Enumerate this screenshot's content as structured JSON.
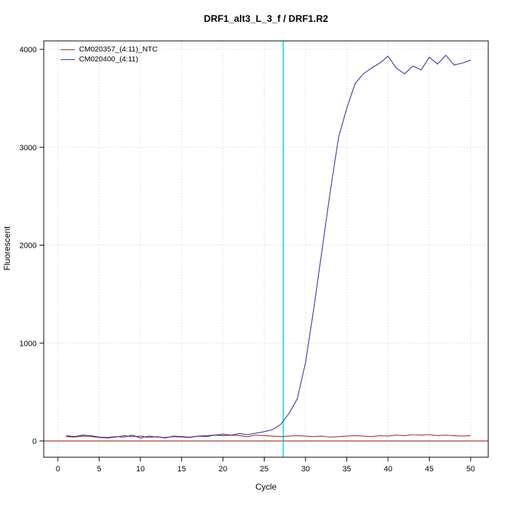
{
  "chart_data": {
    "type": "line",
    "title": "DRF1_alt3_L_3_f / DRF1.R2",
    "xlabel": "Cycle",
    "ylabel": "Fluorescent",
    "xlim": [
      0,
      50
    ],
    "ylim": [
      0,
      4000
    ],
    "xticks": [
      0,
      5,
      10,
      15,
      20,
      25,
      30,
      35,
      40,
      45,
      50
    ],
    "yticks": [
      0,
      1000,
      2000,
      3000,
      4000
    ],
    "grid": true,
    "grid_style": "dotted",
    "legend_position": "top-left",
    "threshold_cycle_line": {
      "x": 27.3,
      "color": "#00CDCD"
    },
    "baseline": {
      "y": 0,
      "color": "#8B0000"
    },
    "cycles": [
      1,
      2,
      3,
      4,
      5,
      6,
      7,
      8,
      9,
      10,
      11,
      12,
      13,
      14,
      15,
      16,
      17,
      18,
      19,
      20,
      21,
      22,
      23,
      24,
      25,
      26,
      27,
      28,
      29,
      30,
      31,
      32,
      33,
      34,
      35,
      36,
      37,
      38,
      39,
      40,
      41,
      42,
      43,
      44,
      45,
      46,
      47,
      48,
      49,
      50
    ],
    "series": [
      {
        "name": "CM020357_(4:11)_NTC",
        "color": "#993333",
        "values": [
          45,
          40,
          50,
          45,
          35,
          30,
          40,
          55,
          45,
          50,
          35,
          45,
          30,
          50,
          45,
          40,
          50,
          55,
          60,
          70,
          60,
          55,
          45,
          60,
          55,
          50,
          45,
          50,
          55,
          50,
          45,
          50,
          40,
          45,
          50,
          55,
          50,
          45,
          55,
          50,
          60,
          55,
          65,
          60,
          65,
          55,
          60,
          55,
          50,
          55
        ]
      },
      {
        "name": "CM020400_(4:11)",
        "color": "#333399",
        "values": [
          55,
          45,
          60,
          55,
          40,
          35,
          45,
          40,
          60,
          30,
          50,
          40,
          35,
          45,
          40,
          35,
          50,
          45,
          60,
          55,
          60,
          75,
          65,
          80,
          95,
          115,
          170,
          280,
          430,
          800,
          1350,
          1950,
          2550,
          3100,
          3400,
          3650,
          3750,
          3810,
          3860,
          3930,
          3810,
          3750,
          3830,
          3790,
          3920,
          3850,
          3940,
          3840,
          3860,
          3890
        ]
      }
    ],
    "legend": {
      "entries": [
        {
          "label": "CM020357_(4:11)_NTC",
          "color": "#993333"
        },
        {
          "label": "CM020400_(4:11)",
          "color": "#333399"
        }
      ]
    }
  }
}
